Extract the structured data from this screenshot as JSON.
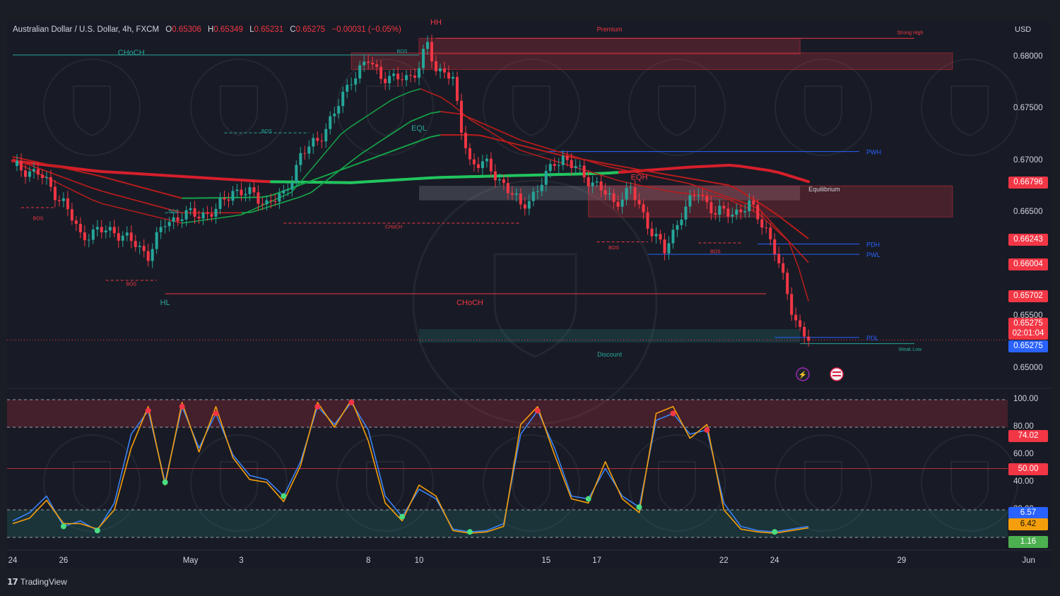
{
  "header": {
    "symbol": "Australian Dollar / U.S. Dollar, 4h, FXCM",
    "o_label": "O",
    "o_value": "0.65306",
    "h_label": "H",
    "h_value": "0.65349",
    "l_label": "L",
    "l_value": "0.65231",
    "c_label": "C",
    "c_value": "0.65275",
    "change": "−0.00031 (−0.05%)"
  },
  "currency": "USD",
  "branding": "TradingView",
  "colors": {
    "up": "#26a69a",
    "down": "#f23645",
    "bull_green": "#22c55e",
    "bear_red": "#ef4444",
    "stoch_k": "#3b82f6",
    "stoch_d": "#f59e0b"
  },
  "chart_data": [
    {
      "type": "candlestick",
      "title": "",
      "interval": "4h",
      "ylim": [
        0.6485,
        0.6825
      ],
      "y_ticks": [
        "0.68000",
        "0.67500",
        "0.67000",
        "0.66500",
        "0.66000",
        "0.65500",
        "0.65000"
      ],
      "y_tick_values": [
        0.68,
        0.675,
        0.67,
        0.665,
        0.66,
        0.655,
        0.65
      ],
      "x_ticks": [
        "24",
        "26",
        "May",
        "3",
        "8",
        "10",
        "15",
        "17",
        "22",
        "24",
        "29",
        "Jun"
      ],
      "x_tick_times": [
        0,
        12,
        42,
        54,
        84,
        96,
        126,
        138,
        168,
        180,
        210,
        240
      ],
      "close_path": {
        "t": [
          0,
          6,
          12,
          16,
          20,
          24,
          28,
          32,
          36,
          40,
          44,
          48,
          52,
          56,
          60,
          64,
          68,
          72,
          76,
          80,
          84,
          87,
          90,
          93,
          96,
          98,
          100,
          102,
          104,
          106,
          108,
          112,
          116,
          120,
          124,
          126,
          128,
          130,
          132,
          134,
          138,
          142,
          146,
          150,
          154,
          158,
          162,
          166,
          170,
          174,
          178,
          180,
          182,
          184,
          186,
          188
        ],
        "close": [
          0.6695,
          0.6688,
          0.666,
          0.6628,
          0.6632,
          0.6633,
          0.6622,
          0.661,
          0.664,
          0.6648,
          0.6648,
          0.6652,
          0.6672,
          0.6668,
          0.666,
          0.6666,
          0.6705,
          0.672,
          0.6745,
          0.678,
          0.6796,
          0.6783,
          0.6778,
          0.678,
          0.679,
          0.6812,
          0.6786,
          0.679,
          0.6775,
          0.673,
          0.67,
          0.6695,
          0.6678,
          0.6656,
          0.6672,
          0.6685,
          0.67,
          0.6703,
          0.6695,
          0.669,
          0.6676,
          0.666,
          0.6672,
          0.664,
          0.6612,
          0.665,
          0.667,
          0.665,
          0.665,
          0.6657,
          0.6635,
          0.6614,
          0.6585,
          0.6558,
          0.6538,
          0.65275
        ]
      },
      "moving_averages": [
        {
          "style": "trend-200",
          "t": [
            0,
            20,
            40,
            60,
            80,
            100,
            120,
            140,
            160,
            170,
            180,
            188
          ],
          "value": [
            0.67,
            0.669,
            0.6685,
            0.668,
            0.6679,
            0.6684,
            0.6686,
            0.6688,
            0.6694,
            0.6696,
            0.669,
            0.668
          ]
        },
        {
          "style": "ema-fast",
          "t": [
            0,
            20,
            40,
            54,
            66,
            78,
            90,
            96,
            102,
            108,
            120,
            132,
            144,
            156,
            168,
            176,
            184,
            188
          ],
          "value": [
            0.67,
            0.666,
            0.664,
            0.6648,
            0.667,
            0.6728,
            0.676,
            0.677,
            0.676,
            0.674,
            0.671,
            0.6695,
            0.668,
            0.667,
            0.6665,
            0.665,
            0.662,
            0.6565
          ]
        },
        {
          "style": "ema-mid",
          "t": [
            0,
            20,
            40,
            56,
            70,
            82,
            94,
            100,
            106,
            120,
            140,
            160,
            176,
            188
          ],
          "value": [
            0.6702,
            0.6672,
            0.665,
            0.665,
            0.6668,
            0.6706,
            0.6738,
            0.6748,
            0.6745,
            0.672,
            0.6695,
            0.6678,
            0.6655,
            0.6602
          ]
        },
        {
          "style": "ema-slow",
          "t": [
            0,
            20,
            40,
            60,
            80,
            100,
            110,
            130,
            150,
            170,
            180,
            188
          ],
          "value": [
            0.6704,
            0.6686,
            0.6664,
            0.6665,
            0.6695,
            0.6725,
            0.6725,
            0.6705,
            0.669,
            0.6676,
            0.665,
            0.6625
          ]
        }
      ],
      "price_tags": [
        {
          "label": "0.66796",
          "value": 0.66796,
          "color": "#f23645"
        },
        {
          "label": "0.66243",
          "value": 0.66243,
          "color": "#f23645"
        },
        {
          "label": "0.66004",
          "value": 0.66004,
          "color": "#f23645"
        },
        {
          "label": "0.65702",
          "value": 0.65702,
          "color": "#f23645"
        },
        {
          "label": "0.65275",
          "value": 0.65275,
          "color": "#f23645"
        },
        {
          "label": "02:01:04",
          "value": 0.65275,
          "color": "#f23645"
        },
        {
          "label": "0.65275",
          "value": 0.65275,
          "color": "#2962ff"
        }
      ],
      "zones": [
        {
          "name": "Premium",
          "top": 0.6818,
          "bottom": 0.6803,
          "t_start": 96,
          "t_end": 186,
          "kind": "supply"
        },
        {
          "name": "",
          "top": 0.6804,
          "bottom": 0.6788,
          "t_start": 80,
          "t_end": 222,
          "kind": "supply"
        },
        {
          "name": "Equilibrium",
          "top": 0.6676,
          "bottom": 0.6662,
          "t_start": 96,
          "t_end": 186,
          "kind": "equilibrium"
        },
        {
          "name": "",
          "top": 0.6676,
          "bottom": 0.6646,
          "t_start": 136,
          "t_end": 222,
          "kind": "supply"
        },
        {
          "name": "Discount",
          "top": 0.6538,
          "bottom": 0.6525,
          "t_start": 96,
          "t_end": 186,
          "kind": "demand"
        }
      ],
      "levels": [
        {
          "label": "PWH",
          "value": 0.6709,
          "t_start": 126,
          "t_end": 200,
          "color": "#2962ff"
        },
        {
          "label": "PDH",
          "value": 0.662,
          "t_start": 176,
          "t_end": 200,
          "color": "#2962ff"
        },
        {
          "label": "PWL",
          "value": 0.661,
          "t_start": 150,
          "t_end": 200,
          "color": "#2962ff"
        },
        {
          "label": "PDL",
          "value": 0.653,
          "t_start": 180,
          "t_end": 200,
          "color": "#2962ff"
        }
      ],
      "annotations": [
        {
          "text": "CHoCH",
          "t": 28,
          "value": 0.6802,
          "color": "#26a69a"
        },
        {
          "text": "HH",
          "t": 100,
          "value": 0.6831,
          "color": "#f23645"
        },
        {
          "text": "EQL",
          "t": 96,
          "value": 0.6729,
          "color": "#26a69a"
        },
        {
          "text": "EQH",
          "t": 148,
          "value": 0.6682,
          "color": "#f23645"
        },
        {
          "text": "HL",
          "t": 36,
          "value": 0.6561,
          "color": "#26a69a"
        },
        {
          "text": "CHoCH",
          "t": 108,
          "value": 0.6561,
          "color": "#f23645"
        },
        {
          "text": "Strong High",
          "t": 212,
          "value": 0.6822,
          "color": "#f23645"
        },
        {
          "text": "Weak Low",
          "t": 212,
          "value": 0.6517,
          "color": "#26a69a"
        },
        {
          "text": "BOS",
          "t": 92,
          "value": 0.6804,
          "color": "#26a69a"
        },
        {
          "text": "BOS",
          "t": 60,
          "value": 0.6727,
          "color": "#26a69a"
        },
        {
          "text": "BOS",
          "t": 38,
          "value": 0.665,
          "color": "#26a69a"
        },
        {
          "text": "BOS",
          "t": 6,
          "value": 0.6643,
          "color": "#f23645"
        },
        {
          "text": "BOS",
          "t": 28,
          "value": 0.658,
          "color": "#f23645"
        },
        {
          "text": "CHoCH",
          "t": 90,
          "value": 0.6635,
          "color": "#f23645"
        },
        {
          "text": "BOS",
          "t": 142,
          "value": 0.6615,
          "color": "#f23645"
        },
        {
          "text": "BOS",
          "t": 166,
          "value": 0.6611,
          "color": "#f23645"
        }
      ]
    },
    {
      "type": "line",
      "title": "",
      "ylim": [
        0,
        100
      ],
      "y_ticks": [
        "100.00",
        "80.00",
        "60.00",
        "40.00",
        "20.00"
      ],
      "y_tick_values": [
        100,
        80,
        60,
        40,
        20
      ],
      "overbought": 80,
      "oversold": 20,
      "midline": 50,
      "series": [
        {
          "style": "stoch-k",
          "t": [
            0,
            4,
            8,
            12,
            16,
            20,
            24,
            28,
            32,
            36,
            40,
            44,
            48,
            52,
            56,
            60,
            64,
            68,
            72,
            76,
            80,
            84,
            88,
            92,
            96,
            100,
            104,
            108,
            112,
            116,
            120,
            124,
            128,
            132,
            136,
            140,
            144,
            148,
            152,
            156,
            160,
            164,
            168,
            172,
            176,
            180,
            184,
            188
          ],
          "value": [
            12,
            18,
            30,
            8,
            12,
            5,
            25,
            75,
            92,
            40,
            95,
            65,
            90,
            60,
            45,
            42,
            30,
            55,
            95,
            82,
            98,
            78,
            30,
            15,
            35,
            28,
            6,
            4,
            5,
            10,
            75,
            92,
            65,
            30,
            28,
            50,
            30,
            22,
            85,
            90,
            75,
            78,
            25,
            8,
            5,
            4,
            6,
            8
          ]
        },
        {
          "style": "stoch-d",
          "t": [
            0,
            4,
            8,
            12,
            16,
            20,
            24,
            28,
            32,
            36,
            40,
            44,
            48,
            52,
            56,
            60,
            64,
            68,
            72,
            76,
            80,
            84,
            88,
            92,
            96,
            100,
            104,
            108,
            112,
            116,
            120,
            124,
            128,
            132,
            136,
            140,
            144,
            148,
            152,
            156,
            160,
            164,
            168,
            172,
            176,
            180,
            184,
            188
          ],
          "value": [
            10,
            14,
            27,
            10,
            10,
            6,
            20,
            65,
            95,
            38,
            98,
            62,
            95,
            58,
            42,
            40,
            26,
            52,
            98,
            80,
            100,
            70,
            25,
            12,
            38,
            30,
            5,
            3,
            4,
            8,
            82,
            95,
            60,
            28,
            25,
            55,
            28,
            18,
            90,
            95,
            72,
            82,
            20,
            6,
            4,
            3,
            5,
            7
          ]
        }
      ],
      "value_tags": [
        {
          "label": "74.02",
          "value": 74.02,
          "color": "#f23645"
        },
        {
          "label": "50.00",
          "value": 50,
          "color": "#f23645"
        },
        {
          "label": "6.57",
          "value": 6.57,
          "color": "#2962ff"
        },
        {
          "label": "6.42",
          "value": 6.42,
          "color": "#f59e0b"
        },
        {
          "label": "1.16",
          "value": 1.16,
          "color": "#4caf50"
        }
      ]
    }
  ]
}
